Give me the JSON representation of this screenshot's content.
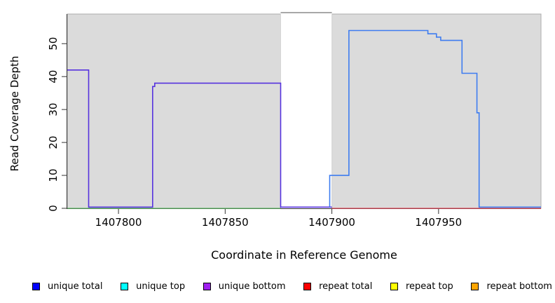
{
  "chart_data": {
    "type": "line",
    "title": "",
    "xlabel": "Coordinate in Reference Genome",
    "ylabel": "Read Coverage Depth",
    "xlim": [
      1407776,
      1407998
    ],
    "ylim": [
      0,
      59
    ],
    "x_ticks": [
      1407800,
      1407850,
      1407900,
      1407950
    ],
    "y_ticks": [
      0,
      10,
      20,
      30,
      40,
      50
    ],
    "grid": false,
    "legend_position": "bottom",
    "covered_regions": [
      [
        1407776,
        1407876
      ],
      [
        1407900,
        1407998
      ]
    ],
    "uncovered_gap": [
      1407876,
      1407900
    ],
    "series": [
      {
        "name": "unique bottom (overlapping unique total)",
        "color": "#5632DE",
        "width": 1.6,
        "zero_lift": true,
        "points": [
          [
            1407776,
            42
          ],
          [
            1407786,
            42
          ],
          [
            1407786,
            0
          ],
          [
            1407816,
            0
          ],
          [
            1407816,
            37
          ],
          [
            1407817,
            37
          ],
          [
            1407817,
            38
          ],
          [
            1407876,
            38
          ],
          [
            1407876,
            0
          ],
          [
            1407900,
            0
          ]
        ]
      },
      {
        "name": "unique total",
        "color": "#3E7CF0",
        "width": 1.6,
        "zero_lift": true,
        "points": [
          [
            1407899,
            0
          ],
          [
            1407899,
            10
          ],
          [
            1407908,
            10
          ],
          [
            1407908,
            54
          ],
          [
            1407945,
            54
          ],
          [
            1407945,
            53
          ],
          [
            1407949,
            53
          ],
          [
            1407949,
            52
          ],
          [
            1407951,
            52
          ],
          [
            1407951,
            51
          ],
          [
            1407961,
            51
          ],
          [
            1407961,
            41
          ],
          [
            1407968,
            41
          ],
          [
            1407968,
            29
          ],
          [
            1407969,
            29
          ],
          [
            1407969,
            0
          ],
          [
            1407998,
            0
          ]
        ]
      },
      {
        "name": "zero baseline left region",
        "color": "#5FBB66",
        "width": 1.3,
        "zero_lift": false,
        "points": [
          [
            1407776,
            0
          ],
          [
            1407876,
            0
          ]
        ]
      },
      {
        "name": "zero baseline right region",
        "color": "#E4495B",
        "width": 1.3,
        "zero_lift": false,
        "points": [
          [
            1407900,
            0
          ],
          [
            1407998,
            0
          ]
        ]
      }
    ],
    "legend": [
      {
        "label": "unique total",
        "color": "#0000FF"
      },
      {
        "label": "unique top",
        "color": "#00FFFF"
      },
      {
        "label": "unique bottom",
        "color": "#A020F0"
      },
      {
        "label": "repeat total",
        "color": "#FF0000"
      },
      {
        "label": "repeat top",
        "color": "#FFFF00"
      },
      {
        "label": "repeat bottom",
        "color": "#FFA500"
      }
    ]
  },
  "colors": {
    "background": "#FFFFFF",
    "region_fill": "#DBDBDB",
    "region_border": "#ACACAC",
    "gap_top_border": "#8C8C8C",
    "axis": "#333333",
    "text": "#000000",
    "swatch_border": "#000000"
  }
}
